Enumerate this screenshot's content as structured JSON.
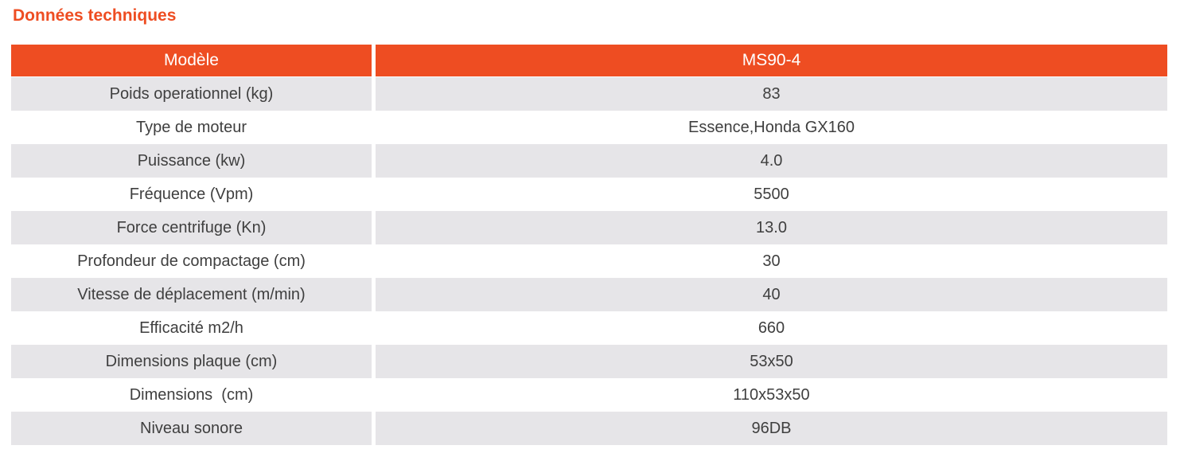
{
  "page_title": "Données techniques",
  "colors": {
    "accent_orange": "#ee4d22",
    "row_stripe_gray": "#e6e5e8",
    "body_text": "#3f3f3f",
    "header_text": "#ffffff"
  },
  "table": {
    "header": {
      "label_col": "Modèle",
      "value_col": "MS90-4"
    },
    "rows": [
      {
        "label": "Poids operationnel (kg)",
        "value": "83"
      },
      {
        "label": "Type de moteur",
        "value": "Essence,Honda GX160"
      },
      {
        "label": "Puissance (kw)",
        "value": "4.0"
      },
      {
        "label": "Fréquence (Vpm)",
        "value": "5500"
      },
      {
        "label": "Force centrifuge (Kn)",
        "value": "13.0"
      },
      {
        "label": "Profondeur de compactage (cm)",
        "value": "30"
      },
      {
        "label": "Vitesse de déplacement (m/min)",
        "value": "40"
      },
      {
        "label": "Efficacité m2/h",
        "value": "660"
      },
      {
        "label": "Dimensions plaque (cm)",
        "value": "53x50"
      },
      {
        "label": "Dimensions  (cm)",
        "value": "110x53x50"
      },
      {
        "label": "Niveau sonore",
        "value": "96DB"
      }
    ]
  }
}
